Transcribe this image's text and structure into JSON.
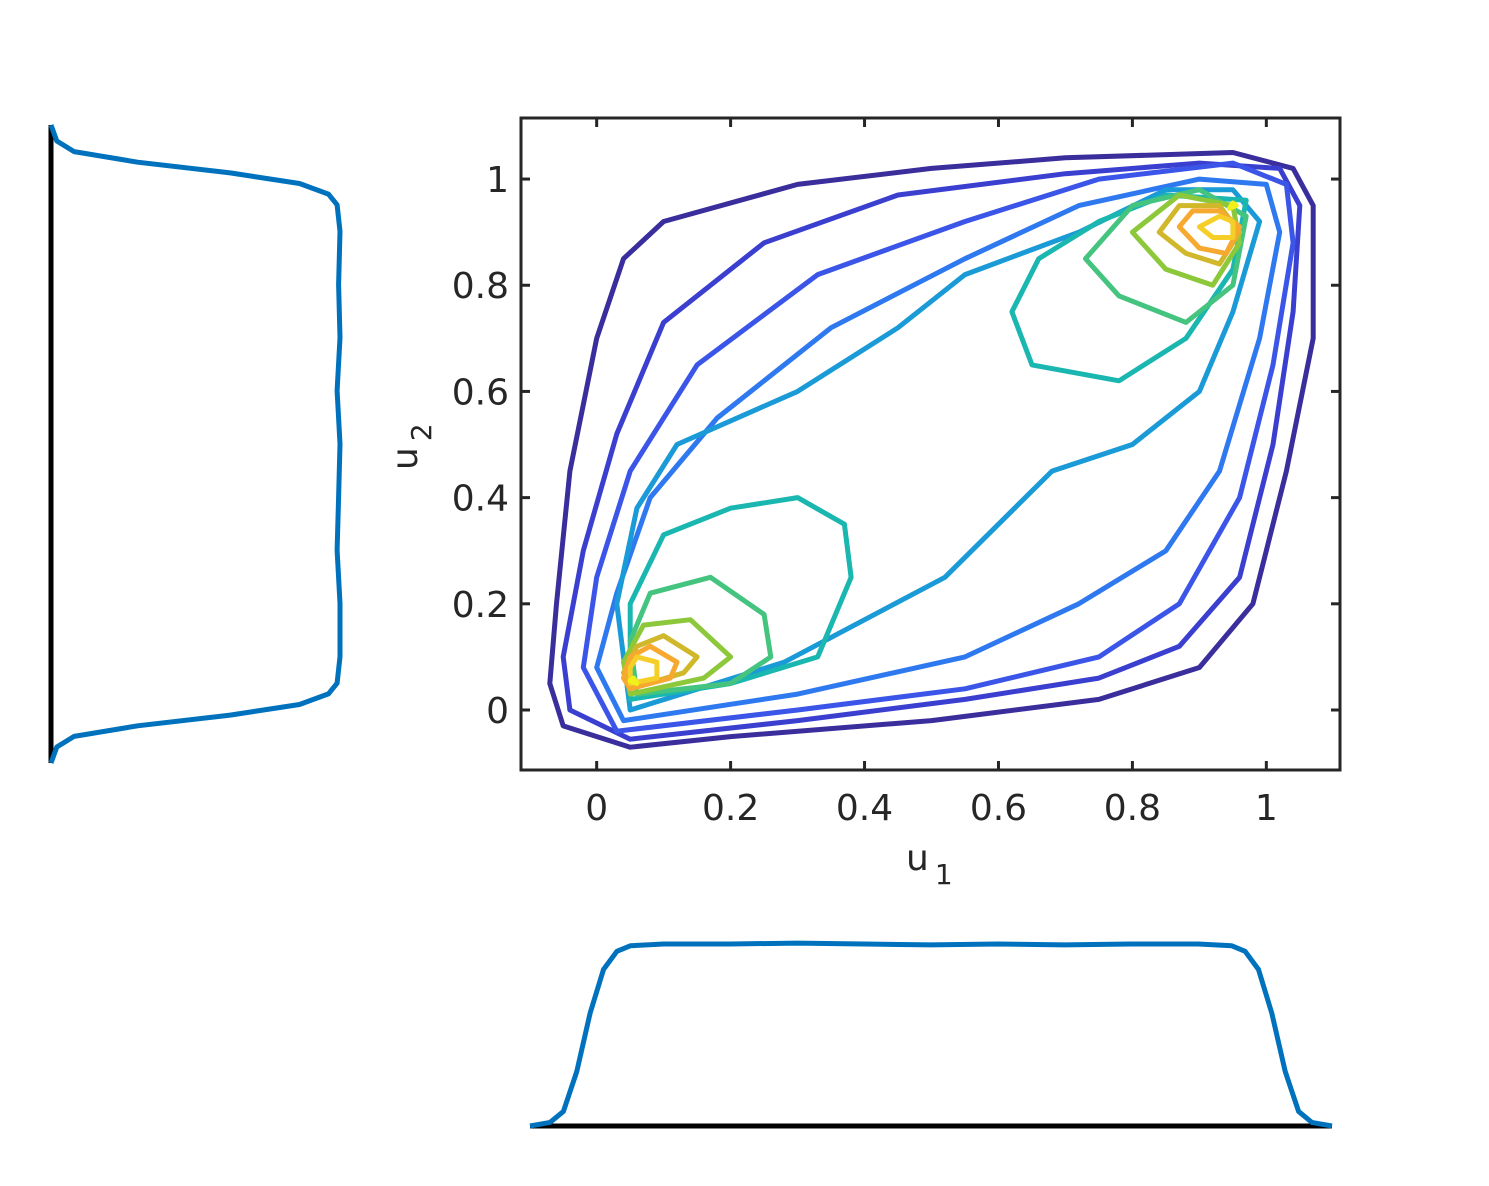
{
  "chart_data": [
    {
      "type": "contour",
      "xlabel": "u",
      "xlabel_sub": "1",
      "ylabel": "u",
      "ylabel_sub": "2",
      "xlim": [
        -0.113,
        1.11
      ],
      "ylim": [
        -0.113,
        1.115
      ],
      "xticks": [
        0,
        0.2,
        0.4,
        0.6,
        0.8,
        1
      ],
      "xtick_labels": [
        "0",
        "0.2",
        "0.4",
        "0.6",
        "0.8",
        "1"
      ],
      "yticks": [
        0,
        0.2,
        0.4,
        0.6,
        0.8,
        1
      ],
      "ytick_labels": [
        "0",
        "0.2",
        "0.4",
        "0.6",
        "0.8",
        "1"
      ],
      "colormap": "parula",
      "levels": [
        {
          "color": "#3a2d9c",
          "paths": [
            [
              [
                0.05,
                -0.07
              ],
              [
                0.2,
                -0.05
              ],
              [
                0.5,
                -0.02
              ],
              [
                0.75,
                0.02
              ],
              [
                0.9,
                0.08
              ],
              [
                0.98,
                0.2
              ],
              [
                1.03,
                0.45
              ],
              [
                1.07,
                0.7
              ],
              [
                1.07,
                0.95
              ],
              [
                1.04,
                1.02
              ],
              [
                0.95,
                1.05
              ],
              [
                0.7,
                1.04
              ],
              [
                0.5,
                1.02
              ],
              [
                0.3,
                0.99
              ],
              [
                0.1,
                0.92
              ],
              [
                0.04,
                0.85
              ],
              [
                0.0,
                0.7
              ],
              [
                -0.04,
                0.45
              ],
              [
                -0.06,
                0.2
              ],
              [
                -0.07,
                0.05
              ],
              [
                -0.05,
                -0.03
              ],
              [
                0.05,
                -0.07
              ]
            ]
          ]
        },
        {
          "color": "#3b3fcf",
          "paths": [
            [
              [
                0.05,
                -0.055
              ],
              [
                0.3,
                -0.02
              ],
              [
                0.55,
                0.02
              ],
              [
                0.75,
                0.06
              ],
              [
                0.87,
                0.12
              ],
              [
                0.96,
                0.25
              ],
              [
                1.01,
                0.5
              ],
              [
                1.04,
                0.75
              ],
              [
                1.05,
                0.95
              ],
              [
                1.02,
                1.02
              ],
              [
                0.9,
                1.03
              ],
              [
                0.7,
                1.01
              ],
              [
                0.45,
                0.97
              ],
              [
                0.25,
                0.88
              ],
              [
                0.1,
                0.73
              ],
              [
                0.03,
                0.52
              ],
              [
                -0.02,
                0.3
              ],
              [
                -0.05,
                0.1
              ],
              [
                -0.04,
                0.0
              ],
              [
                0.05,
                -0.055
              ]
            ]
          ]
        },
        {
          "color": "#3b55e8",
          "paths": [
            [
              [
                0.03,
                -0.04
              ],
              [
                0.3,
                0.0
              ],
              [
                0.55,
                0.04
              ],
              [
                0.75,
                0.1
              ],
              [
                0.87,
                0.2
              ],
              [
                0.96,
                0.4
              ],
              [
                1.01,
                0.65
              ],
              [
                1.04,
                0.88
              ],
              [
                1.03,
                0.99
              ],
              [
                0.95,
                1.03
              ],
              [
                0.75,
                1.0
              ],
              [
                0.55,
                0.92
              ],
              [
                0.33,
                0.82
              ],
              [
                0.15,
                0.65
              ],
              [
                0.05,
                0.45
              ],
              [
                0.0,
                0.25
              ],
              [
                -0.02,
                0.08
              ],
              [
                0.03,
                -0.04
              ]
            ]
          ]
        },
        {
          "color": "#2f79f0",
          "paths": [
            [
              [
                0.04,
                -0.02
              ],
              [
                0.3,
                0.03
              ],
              [
                0.55,
                0.1
              ],
              [
                0.72,
                0.2
              ],
              [
                0.85,
                0.3
              ],
              [
                0.93,
                0.45
              ],
              [
                0.99,
                0.7
              ],
              [
                1.02,
                0.9
              ],
              [
                1.0,
                0.99
              ],
              [
                0.9,
                1.0
              ],
              [
                0.72,
                0.95
              ],
              [
                0.55,
                0.85
              ],
              [
                0.35,
                0.72
              ],
              [
                0.18,
                0.55
              ],
              [
                0.08,
                0.4
              ],
              [
                0.03,
                0.22
              ],
              [
                0.0,
                0.08
              ],
              [
                0.04,
                -0.02
              ]
            ]
          ]
        },
        {
          "color": "#1a9ad6",
          "paths": [
            [
              [
                0.05,
                0.0
              ],
              [
                0.28,
                0.09
              ],
              [
                0.52,
                0.25
              ],
              [
                0.68,
                0.45
              ],
              [
                0.8,
                0.5
              ],
              [
                0.9,
                0.6
              ],
              [
                0.95,
                0.75
              ],
              [
                0.99,
                0.92
              ],
              [
                0.95,
                0.98
              ],
              [
                0.85,
                0.98
              ],
              [
                0.72,
                0.9
              ],
              [
                0.55,
                0.82
              ],
              [
                0.45,
                0.72
              ],
              [
                0.3,
                0.6
              ],
              [
                0.12,
                0.5
              ],
              [
                0.06,
                0.38
              ],
              [
                0.03,
                0.2
              ],
              [
                0.05,
                0.0
              ]
            ]
          ]
        },
        {
          "color": "#1ab6b0",
          "paths": [
            [
              [
                0.05,
                0.02
              ],
              [
                0.2,
                0.05
              ],
              [
                0.33,
                0.1
              ],
              [
                0.38,
                0.25
              ],
              [
                0.37,
                0.35
              ],
              [
                0.3,
                0.4
              ],
              [
                0.2,
                0.38
              ],
              [
                0.1,
                0.33
              ],
              [
                0.05,
                0.2
              ],
              [
                0.05,
                0.02
              ]
            ],
            [
              [
                0.62,
                0.75
              ],
              [
                0.66,
                0.85
              ],
              [
                0.75,
                0.92
              ],
              [
                0.85,
                0.97
              ],
              [
                0.97,
                0.96
              ],
              [
                0.95,
                0.83
              ],
              [
                0.88,
                0.7
              ],
              [
                0.78,
                0.62
              ],
              [
                0.65,
                0.65
              ],
              [
                0.62,
                0.75
              ]
            ]
          ]
        },
        {
          "color": "#45c480",
          "paths": [
            [
              [
                0.06,
                0.03
              ],
              [
                0.2,
                0.05
              ],
              [
                0.26,
                0.1
              ],
              [
                0.25,
                0.18
              ],
              [
                0.17,
                0.25
              ],
              [
                0.08,
                0.22
              ],
              [
                0.05,
                0.13
              ],
              [
                0.06,
                0.03
              ]
            ],
            [
              [
                0.73,
                0.85
              ],
              [
                0.78,
                0.78
              ],
              [
                0.88,
                0.73
              ],
              [
                0.95,
                0.8
              ],
              [
                0.97,
                0.93
              ],
              [
                0.9,
                0.98
              ],
              [
                0.8,
                0.95
              ],
              [
                0.73,
                0.85
              ]
            ]
          ]
        },
        {
          "color": "#8cc83a",
          "paths": [
            [
              [
                0.05,
                0.03
              ],
              [
                0.16,
                0.06
              ],
              [
                0.2,
                0.1
              ],
              [
                0.14,
                0.17
              ],
              [
                0.07,
                0.16
              ],
              [
                0.04,
                0.09
              ],
              [
                0.05,
                0.03
              ]
            ],
            [
              [
                0.8,
                0.9
              ],
              [
                0.85,
                0.83
              ],
              [
                0.92,
                0.8
              ],
              [
                0.96,
                0.88
              ],
              [
                0.95,
                0.95
              ],
              [
                0.87,
                0.97
              ],
              [
                0.8,
                0.9
              ]
            ]
          ]
        },
        {
          "color": "#d0b82a",
          "paths": [
            [
              [
                0.05,
                0.04
              ],
              [
                0.13,
                0.07
              ],
              [
                0.15,
                0.1
              ],
              [
                0.1,
                0.14
              ],
              [
                0.06,
                0.12
              ],
              [
                0.04,
                0.07
              ],
              [
                0.05,
                0.04
              ]
            ],
            [
              [
                0.84,
                0.9
              ],
              [
                0.88,
                0.86
              ],
              [
                0.93,
                0.84
              ],
              [
                0.96,
                0.9
              ],
              [
                0.93,
                0.95
              ],
              [
                0.87,
                0.95
              ],
              [
                0.84,
                0.9
              ]
            ]
          ]
        },
        {
          "color": "#f6a92e",
          "paths": [
            [
              [
                0.05,
                0.04
              ],
              [
                0.11,
                0.06
              ],
              [
                0.12,
                0.09
              ],
              [
                0.08,
                0.12
              ],
              [
                0.05,
                0.1
              ],
              [
                0.04,
                0.06
              ],
              [
                0.05,
                0.04
              ]
            ],
            [
              [
                0.87,
                0.91
              ],
              [
                0.9,
                0.87
              ],
              [
                0.94,
                0.86
              ],
              [
                0.96,
                0.91
              ],
              [
                0.93,
                0.94
              ],
              [
                0.89,
                0.94
              ],
              [
                0.87,
                0.91
              ]
            ]
          ]
        },
        {
          "color": "#f5cf28",
          "paths": [
            [
              [
                0.05,
                0.05
              ],
              [
                0.09,
                0.06
              ],
              [
                0.09,
                0.09
              ],
              [
                0.06,
                0.1
              ],
              [
                0.05,
                0.08
              ],
              [
                0.05,
                0.05
              ]
            ],
            [
              [
                0.9,
                0.91
              ],
              [
                0.92,
                0.89
              ],
              [
                0.95,
                0.89
              ],
              [
                0.95,
                0.92
              ],
              [
                0.93,
                0.93
              ],
              [
                0.9,
                0.91
              ]
            ]
          ]
        },
        {
          "color": "#f0f01a",
          "paths": [
            [
              [
                0.05,
                0.055
              ],
              [
                0.06,
                0.05
              ],
              [
                0.055,
                0.06
              ],
              [
                0.05,
                0.055
              ]
            ],
            [
              [
                0.945,
                0.945
              ],
              [
                0.955,
                0.95
              ],
              [
                0.95,
                0.955
              ],
              [
                0.945,
                0.945
              ]
            ]
          ]
        }
      ]
    },
    {
      "type": "line",
      "orientation": "horizontal-baseline",
      "x": [
        -0.1,
        -0.07,
        -0.05,
        -0.03,
        -0.01,
        0.01,
        0.03,
        0.05,
        0.1,
        0.2,
        0.3,
        0.4,
        0.5,
        0.6,
        0.7,
        0.8,
        0.9,
        0.95,
        0.97,
        0.99,
        1.01,
        1.03,
        1.05,
        1.07,
        1.1
      ],
      "y": [
        0.0,
        0.02,
        0.08,
        0.3,
        0.62,
        0.86,
        0.96,
        0.99,
        1.0,
        1.0,
        1.005,
        1.0,
        0.995,
        1.0,
        0.995,
        1.0,
        1.0,
        0.99,
        0.96,
        0.86,
        0.62,
        0.3,
        0.08,
        0.02,
        0.0
      ]
    },
    {
      "type": "line",
      "orientation": "vertical-baseline",
      "x": [
        -0.1,
        -0.07,
        -0.05,
        -0.03,
        -0.01,
        0.01,
        0.03,
        0.05,
        0.1,
        0.2,
        0.3,
        0.4,
        0.5,
        0.6,
        0.7,
        0.8,
        0.9,
        0.95,
        0.97,
        0.99,
        1.01,
        1.03,
        1.05,
        1.07,
        1.1
      ],
      "y": [
        0.0,
        0.02,
        0.08,
        0.3,
        0.62,
        0.86,
        0.96,
        0.99,
        1.0,
        1.0,
        0.99,
        0.995,
        1.0,
        0.99,
        1.0,
        0.995,
        1.0,
        0.99,
        0.96,
        0.86,
        0.62,
        0.3,
        0.08,
        0.02,
        0.0
      ]
    }
  ]
}
